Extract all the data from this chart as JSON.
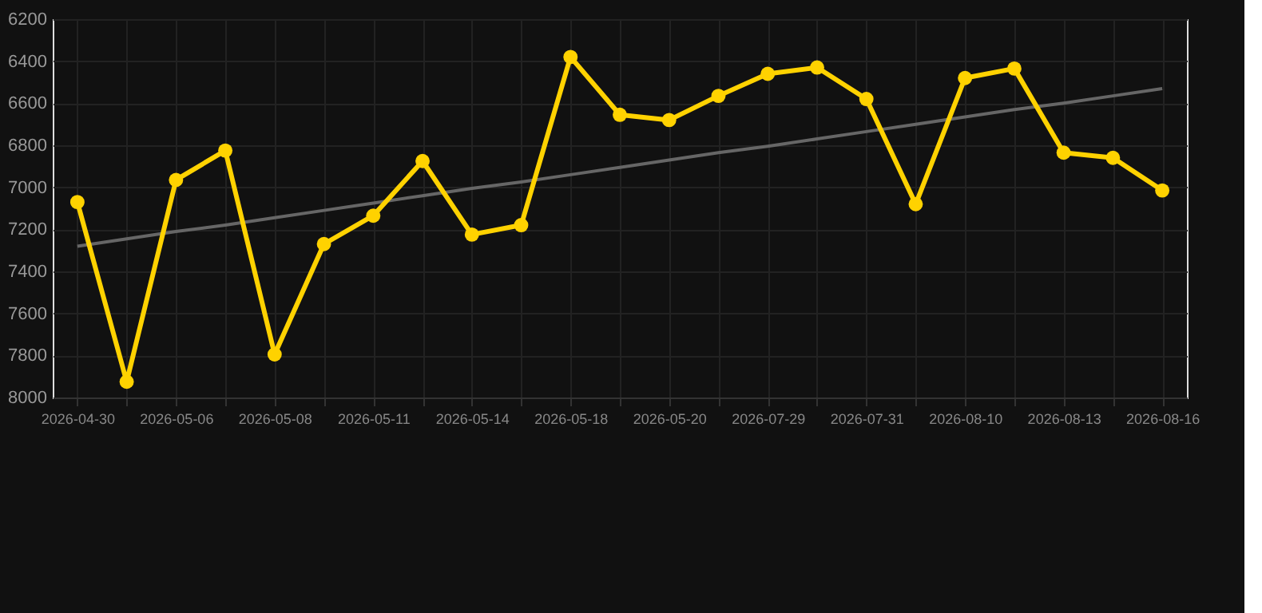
{
  "chart_data": {
    "type": "line",
    "categories": [
      "2026-04-30",
      null,
      "2026-05-06",
      null,
      "2026-05-08",
      null,
      "2026-05-11",
      null,
      "2026-05-14",
      null,
      "2026-05-18",
      null,
      "2026-05-20",
      null,
      "2026-07-29",
      null,
      "2026-07-31",
      null,
      "2026-08-10",
      null,
      "2026-08-13",
      null,
      "2026-08-16"
    ],
    "series": [
      {
        "color": "#ffd200",
        "marker": "circle",
        "values": [
          7070,
          7925,
          6965,
          6825,
          7795,
          7270,
          7135,
          6875,
          7225,
          7180,
          6380,
          6655,
          6680,
          6565,
          6460,
          6430,
          6580,
          7080,
          6480,
          6435,
          6835,
          6860,
          7015
        ]
      },
      {
        "type": "line",
        "color": "#666666",
        "marker": "none",
        "values": [
          7280,
          7245,
          7210,
          7180,
          7145,
          7110,
          7075,
          7040,
          7005,
          6975,
          6940,
          6905,
          6870,
          6835,
          6805,
          6770,
          6735,
          6700,
          6665,
          6630,
          6600,
          6565,
          6530
        ]
      }
    ],
    "ylim": [
      8000,
      6200
    ],
    "yticks": [
      6200,
      6400,
      6600,
      6800,
      7000,
      7200,
      7400,
      7600,
      7800,
      8000
    ],
    "grid": true
  }
}
